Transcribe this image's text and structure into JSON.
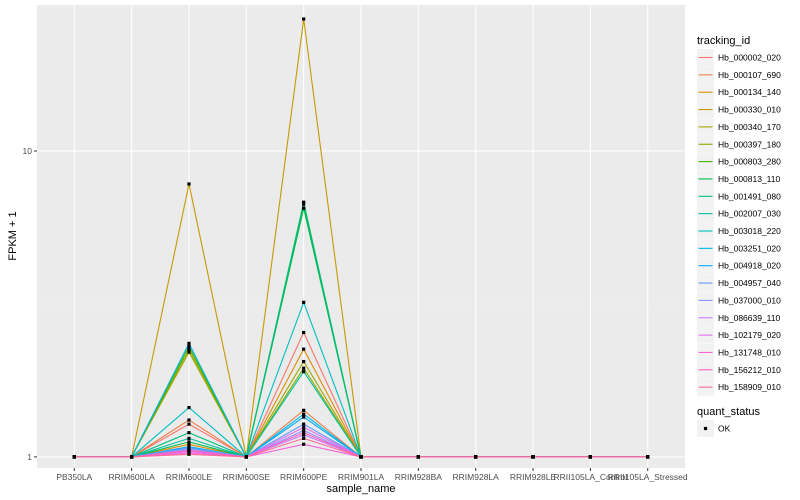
{
  "chart_data": {
    "type": "line",
    "xlabel": "sample_name",
    "ylabel": "FPKM + 1",
    "y_scale": "log10",
    "ylim": [
      0.92,
      30
    ],
    "y_ticks": [
      1,
      10
    ],
    "y_tick_labels": [
      "1",
      "10"
    ],
    "grid": true,
    "legend_placement": "right",
    "categories": [
      "PB350LA",
      "RRIM600LA",
      "RRIM600LE",
      "RRIM600SE",
      "RRIM600PE",
      "RRIM901LA",
      "RRIM928BA",
      "RRIM928LA",
      "RRIM928LE",
      "RRII105LA_Control",
      "RRII105LA_Stressed"
    ],
    "legend_title": "tracking_id",
    "series": [
      {
        "name": "Hb_000002_020",
        "color": "#F8766D",
        "values": [
          1,
          1,
          1.28,
          1,
          2.55,
          1,
          1,
          1,
          1,
          1,
          1
        ]
      },
      {
        "name": "Hb_000107_690",
        "color": "#EF7F49",
        "values": [
          1,
          1,
          1.32,
          1,
          1.42,
          1,
          1,
          1,
          1,
          1,
          1
        ]
      },
      {
        "name": "Hb_000134_140",
        "color": "#DE8C00",
        "values": [
          1,
          1,
          1.1,
          1,
          2.25,
          1,
          1,
          1,
          1,
          1,
          1
        ]
      },
      {
        "name": "Hb_000330_010",
        "color": "#C99800",
        "values": [
          1,
          1,
          7.8,
          1,
          27,
          1,
          1,
          1,
          1,
          1,
          1
        ]
      },
      {
        "name": "Hb_000340_170",
        "color": "#A3A500",
        "values": [
          1,
          1,
          2.2,
          1,
          2.05,
          1,
          1,
          1,
          1,
          1,
          1
        ]
      },
      {
        "name": "Hb_000397_180",
        "color": "#86AC00",
        "values": [
          1,
          1,
          2.25,
          1,
          1.95,
          1,
          1,
          1,
          1,
          1,
          1
        ]
      },
      {
        "name": "Hb_000803_280",
        "color": "#39B600",
        "values": [
          1,
          1,
          2.3,
          1,
          6.7,
          1,
          1,
          1,
          1,
          1,
          1
        ]
      },
      {
        "name": "Hb_000813_110",
        "color": "#00BB4E",
        "values": [
          1,
          1,
          1.12,
          1,
          6.5,
          1,
          1,
          1,
          1,
          1,
          1
        ]
      },
      {
        "name": "Hb_001491_080",
        "color": "#00BF7D",
        "values": [
          1,
          1,
          1.2,
          1,
          6.8,
          1,
          1,
          1,
          1,
          1,
          1
        ]
      },
      {
        "name": "Hb_002007_030",
        "color": "#00C1A3",
        "values": [
          1,
          1,
          1.15,
          1,
          1.9,
          1,
          1,
          1,
          1,
          1,
          1
        ]
      },
      {
        "name": "Hb_003018_220",
        "color": "#00BFC4",
        "values": [
          1,
          1,
          1.45,
          1,
          3.2,
          1,
          1,
          1,
          1,
          1,
          1
        ]
      },
      {
        "name": "Hb_003251_020",
        "color": "#00B8E5",
        "values": [
          1,
          1,
          2.35,
          1,
          1.38,
          1,
          1,
          1,
          1,
          1,
          1
        ]
      },
      {
        "name": "Hb_004918_020",
        "color": "#00A9FF",
        "values": [
          1,
          1,
          1.08,
          1,
          1.35,
          1,
          1,
          1,
          1,
          1,
          1
        ]
      },
      {
        "name": "Hb_004957_040",
        "color": "#619CFF",
        "values": [
          1,
          1,
          1.07,
          1,
          1.28,
          1,
          1,
          1,
          1,
          1,
          1
        ]
      },
      {
        "name": "Hb_037000_010",
        "color": "#8F91FF",
        "values": [
          1,
          1,
          1.06,
          1,
          1.22,
          1,
          1,
          1,
          1,
          1,
          1
        ]
      },
      {
        "name": "Hb_086639_110",
        "color": "#C77CFF",
        "values": [
          1,
          1,
          1.05,
          1,
          1.18,
          1,
          1,
          1,
          1,
          1,
          1
        ]
      },
      {
        "name": "Hb_102179_020",
        "color": "#E76BF3",
        "values": [
          1,
          1,
          1.04,
          1,
          1.25,
          1,
          1,
          1,
          1,
          1,
          1
        ]
      },
      {
        "name": "Hb_131748_010",
        "color": "#FA62DB",
        "values": [
          1,
          1,
          1.03,
          1,
          1.1,
          1,
          1,
          1,
          1,
          1,
          1
        ]
      },
      {
        "name": "Hb_156212_010",
        "color": "#FF62BC",
        "values": [
          1,
          1,
          1.05,
          1,
          1.2,
          1,
          1,
          1,
          1,
          1,
          1
        ]
      },
      {
        "name": "Hb_158909_010",
        "color": "#FF6C91",
        "values": [
          1,
          1,
          1.02,
          1,
          1.15,
          1,
          1,
          1,
          1,
          1,
          1
        ]
      }
    ],
    "shape_legend": {
      "title": "quant_status",
      "items": [
        {
          "label": "OK"
        }
      ]
    }
  }
}
